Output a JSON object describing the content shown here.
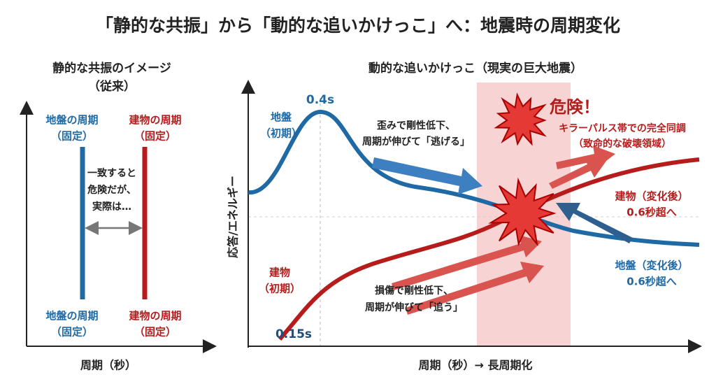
{
  "title": "「静的な共振」から「動的な追いかけっこ」へ：地震時の周期変化",
  "left_panel": {
    "title": [
      "静的な共振のイメージ",
      "（従来）"
    ],
    "ground_top": [
      "地盤の周期",
      "（固定）"
    ],
    "building_top": [
      "建物の周期",
      "（固定）"
    ],
    "middle_note": [
      "一致すると",
      "危険だが、",
      "実際は…"
    ],
    "ground_bottom": [
      "地盤の周期",
      "（固定）"
    ],
    "building_bottom": [
      "建物の周期",
      "（固定）"
    ],
    "x_label": "周期（秒）"
  },
  "right_panel": {
    "title": "動的な追いかけっこ（現実の巨大地震）",
    "y_label": "応答/エネルギー",
    "x_label": "周期（秒）→ 長周期化",
    "ground_peak": "0.4s",
    "ground_initial": [
      "地盤",
      "（初期）"
    ],
    "ground_note": [
      "歪みで剛性低下、",
      "周期が伸びて「逃げる」"
    ],
    "danger": "危険！",
    "danger_note": [
      "キラーパルス帯での完全同調",
      "（致命的な破壊領域）"
    ],
    "building_after": [
      "建物（変化後）",
      "0.6秒超へ"
    ],
    "ground_after": [
      "地盤（変化後）",
      "0.6秒超へ"
    ],
    "building_initial": [
      "建物",
      "（初期）"
    ],
    "building_note": [
      "損傷で剛性低下、",
      "周期が伸びて「追う」"
    ],
    "building_start": "0.15s"
  }
}
